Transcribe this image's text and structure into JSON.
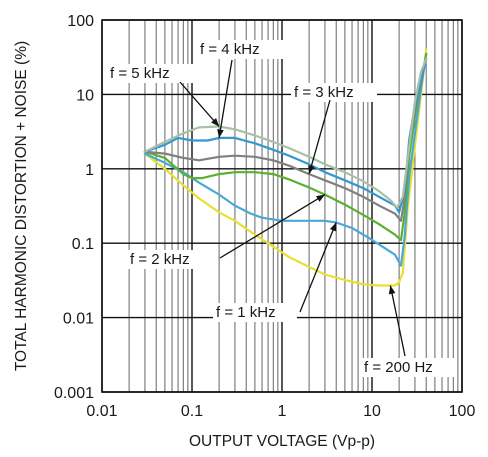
{
  "chart_data": {
    "type": "line",
    "xlabel": "OUTPUT VOLTAGE (Vp-p)",
    "ylabel": "TOTAL HARMONIC DISTORTION + NOISE (%)",
    "x_scale": "log",
    "y_scale": "log",
    "xlim": [
      0.01,
      100
    ],
    "ylim": [
      0.001,
      100
    ],
    "x_ticks": [
      0.01,
      0.1,
      1,
      10,
      100
    ],
    "x_tick_labels": [
      "0.01",
      "0.1",
      "1",
      "10",
      "100"
    ],
    "y_ticks": [
      0.001,
      0.01,
      0.1,
      1,
      10,
      100
    ],
    "y_tick_labels": [
      "0.001",
      "0.01",
      "0.1",
      "1",
      "10",
      "100"
    ],
    "grid": true,
    "series": [
      {
        "name": "f = 200 Hz",
        "color": "#e8e030",
        "points": [
          [
            0.03,
            1.6
          ],
          [
            0.05,
            1.0
          ],
          [
            0.08,
            0.6
          ],
          [
            0.12,
            0.4
          ],
          [
            0.2,
            0.26
          ],
          [
            0.3,
            0.2
          ],
          [
            0.5,
            0.13
          ],
          [
            0.8,
            0.09
          ],
          [
            1.2,
            0.065
          ],
          [
            2,
            0.048
          ],
          [
            3,
            0.038
          ],
          [
            5,
            0.032
          ],
          [
            8,
            0.028
          ],
          [
            12,
            0.027
          ],
          [
            16,
            0.027
          ],
          [
            18,
            0.027
          ],
          [
            20,
            0.03
          ],
          [
            22,
            0.04
          ],
          [
            25,
            0.3
          ],
          [
            30,
            2
          ],
          [
            35,
            10
          ],
          [
            40,
            40
          ]
        ]
      },
      {
        "name": "f = 1 kHz",
        "color": "#4aa8d8",
        "points": [
          [
            0.03,
            1.6
          ],
          [
            0.05,
            1.2
          ],
          [
            0.08,
            0.9
          ],
          [
            0.12,
            0.65
          ],
          [
            0.2,
            0.45
          ],
          [
            0.3,
            0.32
          ],
          [
            0.45,
            0.25
          ],
          [
            0.6,
            0.22
          ],
          [
            1,
            0.2
          ],
          [
            1.5,
            0.2
          ],
          [
            2.2,
            0.2
          ],
          [
            3,
            0.2
          ],
          [
            4,
            0.19
          ],
          [
            6,
            0.16
          ],
          [
            9,
            0.12
          ],
          [
            13,
            0.09
          ],
          [
            18,
            0.07
          ],
          [
            21,
            0.05
          ],
          [
            23,
            0.12
          ],
          [
            26,
            0.8
          ],
          [
            30,
            3
          ],
          [
            35,
            12
          ],
          [
            40,
            35
          ]
        ]
      },
      {
        "name": "f = 2 kHz",
        "color": "#5ab030",
        "points": [
          [
            0.03,
            1.7
          ],
          [
            0.05,
            1.4
          ],
          [
            0.08,
            0.85
          ],
          [
            0.1,
            0.75
          ],
          [
            0.13,
            0.75
          ],
          [
            0.2,
            0.85
          ],
          [
            0.3,
            0.9
          ],
          [
            0.5,
            0.9
          ],
          [
            0.8,
            0.85
          ],
          [
            1.2,
            0.72
          ],
          [
            2,
            0.56
          ],
          [
            3,
            0.45
          ],
          [
            5,
            0.33
          ],
          [
            8,
            0.24
          ],
          [
            12,
            0.18
          ],
          [
            18,
            0.13
          ],
          [
            21,
            0.11
          ],
          [
            23,
            0.25
          ],
          [
            26,
            1.5
          ],
          [
            30,
            5
          ],
          [
            35,
            15
          ],
          [
            40,
            35
          ]
        ]
      },
      {
        "name": "f = 3 kHz",
        "color": "#808080",
        "points": [
          [
            0.03,
            1.7
          ],
          [
            0.05,
            1.6
          ],
          [
            0.08,
            1.4
          ],
          [
            0.12,
            1.3
          ],
          [
            0.2,
            1.45
          ],
          [
            0.3,
            1.5
          ],
          [
            0.5,
            1.45
          ],
          [
            0.8,
            1.3
          ],
          [
            1.2,
            1.1
          ],
          [
            2,
            0.85
          ],
          [
            3,
            0.7
          ],
          [
            5,
            0.55
          ],
          [
            8,
            0.42
          ],
          [
            12,
            0.32
          ],
          [
            18,
            0.25
          ],
          [
            21,
            0.2
          ],
          [
            23,
            0.4
          ],
          [
            26,
            2
          ],
          [
            30,
            6
          ],
          [
            35,
            15
          ],
          [
            40,
            30
          ]
        ]
      },
      {
        "name": "f = 4 kHz",
        "color": "#3398d0",
        "points": [
          [
            0.03,
            1.7
          ],
          [
            0.05,
            2.1
          ],
          [
            0.07,
            2.6
          ],
          [
            0.1,
            2.4
          ],
          [
            0.15,
            2.4
          ],
          [
            0.2,
            2.6
          ],
          [
            0.3,
            2.6
          ],
          [
            0.5,
            2.2
          ],
          [
            0.8,
            1.8
          ],
          [
            1.2,
            1.5
          ],
          [
            2,
            1.15
          ],
          [
            3,
            0.9
          ],
          [
            5,
            0.7
          ],
          [
            8,
            0.55
          ],
          [
            12,
            0.42
          ],
          [
            18,
            0.32
          ],
          [
            20,
            0.26
          ],
          [
            23,
            0.5
          ],
          [
            26,
            2.5
          ],
          [
            30,
            7
          ],
          [
            35,
            16
          ],
          [
            40,
            30
          ]
        ]
      },
      {
        "name": "f = 5 kHz",
        "color": "#a8c0a8",
        "points": [
          [
            0.03,
            1.7
          ],
          [
            0.05,
            2.3
          ],
          [
            0.08,
            3
          ],
          [
            0.12,
            3.6
          ],
          [
            0.2,
            3.7
          ],
          [
            0.3,
            3.4
          ],
          [
            0.5,
            2.8
          ],
          [
            0.8,
            2.3
          ],
          [
            1.2,
            1.9
          ],
          [
            2,
            1.45
          ],
          [
            3,
            1.15
          ],
          [
            5,
            0.9
          ],
          [
            8,
            0.68
          ],
          [
            12,
            0.5
          ],
          [
            16,
            0.38
          ],
          [
            19,
            0.3
          ],
          [
            22,
            0.42
          ],
          [
            26,
            2
          ],
          [
            30,
            8
          ],
          [
            35,
            20
          ],
          [
            40,
            30
          ]
        ]
      }
    ],
    "annotations": [
      {
        "text": "f = 5 kHz",
        "target_x": 0.2,
        "target_y": 3.7
      },
      {
        "text": "f = 4 kHz",
        "target_x": 0.2,
        "target_y": 2.6
      },
      {
        "text": "f = 3 kHz",
        "target_x": 2,
        "target_y": 0.85
      },
      {
        "text": "f = 2 kHz",
        "target_x": 3,
        "target_y": 0.45
      },
      {
        "text": "f = 1 kHz",
        "target_x": 4,
        "target_y": 0.19
      },
      {
        "text": "f = 200 Hz",
        "target_x": 16,
        "target_y": 0.027
      }
    ]
  }
}
